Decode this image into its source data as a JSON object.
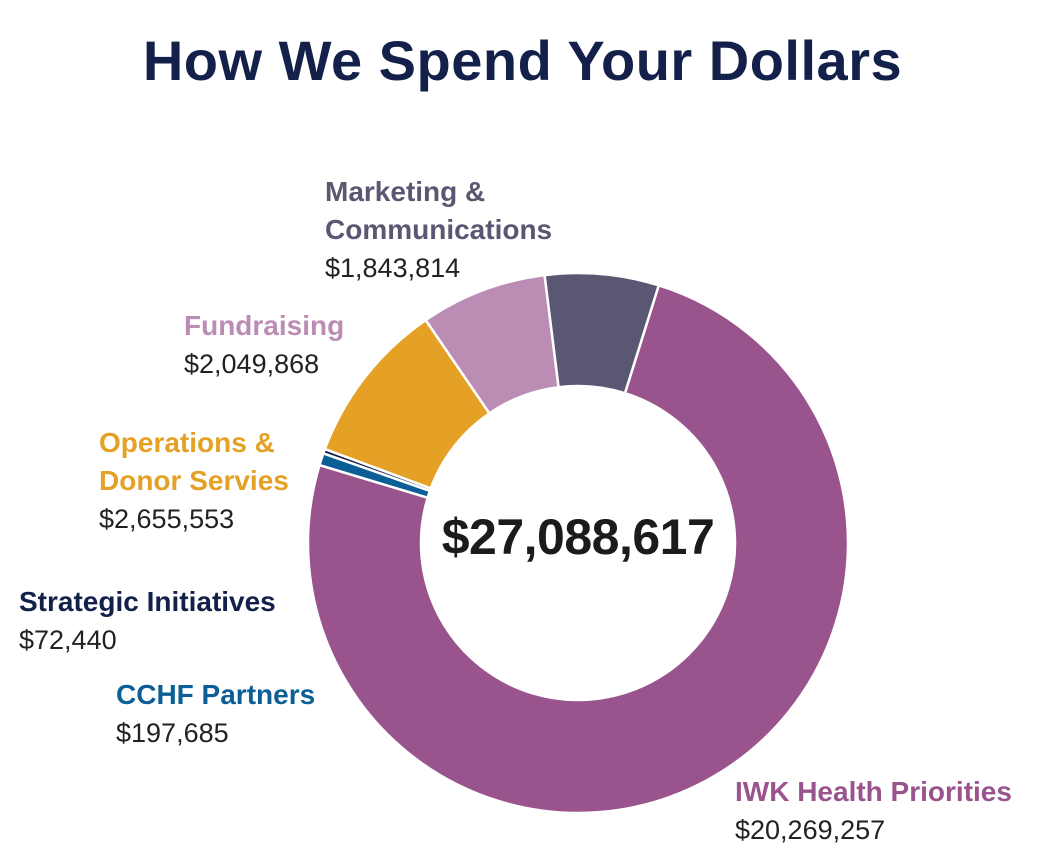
{
  "title": "How We Spend Your Dollars",
  "total": "$27,088,617",
  "chart_data": {
    "type": "pie",
    "style": "donut",
    "title": "How We Spend Your Dollars",
    "center_label": "$27,088,617",
    "categories": [
      "IWK Health Priorities",
      "CCHF Partners",
      "Strategic Initiatives",
      "Operations & Donor Servies",
      "Fundraising",
      "Marketing & Communications"
    ],
    "values": [
      20269257,
      197685,
      72440,
      2655553,
      2049868,
      1843814
    ],
    "colors": [
      "#9a548d",
      "#0b5e96",
      "#13204a",
      "#e5a125",
      "#bb8db4",
      "#5a5772"
    ]
  },
  "labels": [
    {
      "line1": "Marketing &",
      "line2": "Communications",
      "value": "$1,843,814",
      "color": "#5a5772"
    },
    {
      "line1": "Fundraising",
      "value": "$2,049,868",
      "color": "#bb8db4"
    },
    {
      "line1": "Operations &",
      "line2": "Donor Servies",
      "value": "$2,655,553",
      "color": "#e5a125"
    },
    {
      "line1": "Strategic Initiatives",
      "value": "$72,440",
      "color": "#13204a"
    },
    {
      "line1": "CCHF Partners",
      "value": "$197,685",
      "color": "#0b5e96"
    },
    {
      "line1": "IWK Health Priorities",
      "value": "$20,269,257",
      "color": "#9a548d"
    }
  ]
}
